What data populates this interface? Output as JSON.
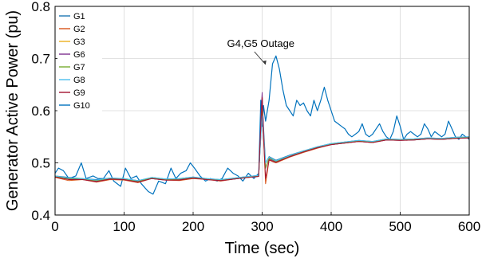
{
  "chart_data": {
    "type": "line",
    "xlabel": "Time (sec)",
    "ylabel": "Generator Active Power (pu)",
    "xlim": [
      0,
      600
    ],
    "ylim": [
      0.4,
      0.8
    ],
    "xticks": [
      0,
      100,
      200,
      300,
      400,
      500,
      600
    ],
    "xtick_labels": [
      "0",
      "100",
      "200",
      "300",
      "400",
      "500",
      "600"
    ],
    "yticks": [
      0.4,
      0.5,
      0.6,
      0.7,
      0.8
    ],
    "ytick_labels": [
      "0.4",
      "0.5",
      "0.6",
      "0.7",
      "0.8"
    ],
    "grid": true,
    "legend_position": "top-left",
    "annotation": {
      "text": "G4,G5 Outage",
      "x": 298,
      "y": 0.71
    },
    "series": [
      {
        "name": "G1",
        "color": "#1f77b4",
        "x": [
          0,
          20,
          40,
          60,
          80,
          100,
          120,
          140,
          160,
          180,
          200,
          220,
          240,
          260,
          280,
          295,
          298,
          300,
          302,
          305,
          310,
          320,
          340,
          360,
          380,
          400,
          420,
          440,
          460,
          480,
          500,
          520,
          540,
          560,
          580,
          600
        ],
        "y": [
          0.475,
          0.472,
          0.47,
          0.468,
          0.471,
          0.47,
          0.466,
          0.472,
          0.469,
          0.47,
          0.473,
          0.47,
          0.468,
          0.471,
          0.474,
          0.476,
          0.55,
          0.62,
          0.57,
          0.5,
          0.512,
          0.505,
          0.515,
          0.523,
          0.531,
          0.537,
          0.54,
          0.543,
          0.541,
          0.546,
          0.545,
          0.546,
          0.548,
          0.547,
          0.549,
          0.55
        ]
      },
      {
        "name": "G2",
        "color": "#d95319",
        "x": [
          0,
          20,
          40,
          60,
          80,
          100,
          120,
          140,
          160,
          180,
          200,
          220,
          240,
          260,
          280,
          295,
          298,
          300,
          302,
          305,
          310,
          320,
          340,
          360,
          380,
          400,
          420,
          440,
          460,
          480,
          500,
          520,
          540,
          560,
          580,
          600
        ],
        "y": [
          0.472,
          0.466,
          0.468,
          0.463,
          0.468,
          0.467,
          0.462,
          0.47,
          0.467,
          0.466,
          0.47,
          0.468,
          0.465,
          0.469,
          0.472,
          0.474,
          0.56,
          0.63,
          0.55,
          0.46,
          0.505,
          0.5,
          0.511,
          0.52,
          0.528,
          0.535,
          0.538,
          0.541,
          0.539,
          0.544,
          0.543,
          0.544,
          0.546,
          0.545,
          0.547,
          0.548
        ]
      },
      {
        "name": "G3",
        "color": "#edb120",
        "x": [
          0,
          20,
          40,
          60,
          80,
          100,
          120,
          140,
          160,
          180,
          200,
          220,
          240,
          260,
          280,
          295,
          298,
          300,
          302,
          305,
          310,
          320,
          340,
          360,
          380,
          400,
          420,
          440,
          460,
          480,
          500,
          520,
          540,
          560,
          580,
          600
        ],
        "y": [
          0.474,
          0.47,
          0.469,
          0.466,
          0.47,
          0.469,
          0.465,
          0.471,
          0.468,
          0.469,
          0.472,
          0.469,
          0.467,
          0.47,
          0.473,
          0.475,
          0.57,
          0.61,
          0.56,
          0.49,
          0.51,
          0.503,
          0.513,
          0.522,
          0.53,
          0.536,
          0.539,
          0.542,
          0.54,
          0.545,
          0.544,
          0.545,
          0.547,
          0.546,
          0.548,
          0.549
        ]
      },
      {
        "name": "G6",
        "color": "#7e2f8e",
        "x": [
          0,
          20,
          40,
          60,
          80,
          100,
          120,
          140,
          160,
          180,
          200,
          220,
          240,
          260,
          280,
          295,
          298,
          300,
          302,
          305,
          310,
          320,
          340,
          360,
          380,
          400,
          420,
          440,
          460,
          480,
          500,
          520,
          540,
          560,
          580,
          600
        ],
        "y": [
          0.473,
          0.469,
          0.468,
          0.465,
          0.469,
          0.468,
          0.464,
          0.47,
          0.467,
          0.468,
          0.471,
          0.468,
          0.466,
          0.469,
          0.472,
          0.474,
          0.58,
          0.635,
          0.56,
          0.49,
          0.508,
          0.502,
          0.512,
          0.521,
          0.529,
          0.535,
          0.538,
          0.541,
          0.539,
          0.544,
          0.543,
          0.544,
          0.546,
          0.545,
          0.547,
          0.548
        ]
      },
      {
        "name": "G7",
        "color": "#77ac30",
        "x": [
          0,
          20,
          40,
          60,
          80,
          100,
          120,
          140,
          160,
          180,
          200,
          220,
          240,
          260,
          280,
          295,
          298,
          300,
          302,
          305,
          310,
          320,
          340,
          360,
          380,
          400,
          420,
          440,
          460,
          480,
          500,
          520,
          540,
          560,
          580,
          600
        ],
        "y": [
          0.474,
          0.47,
          0.469,
          0.466,
          0.47,
          0.469,
          0.465,
          0.471,
          0.468,
          0.469,
          0.472,
          0.469,
          0.467,
          0.47,
          0.473,
          0.475,
          0.56,
          0.6,
          0.55,
          0.49,
          0.509,
          0.503,
          0.513,
          0.522,
          0.53,
          0.536,
          0.539,
          0.542,
          0.54,
          0.545,
          0.544,
          0.545,
          0.547,
          0.546,
          0.548,
          0.549
        ]
      },
      {
        "name": "G8",
        "color": "#4dbeee",
        "x": [
          0,
          20,
          40,
          60,
          80,
          100,
          120,
          140,
          160,
          180,
          200,
          220,
          240,
          260,
          280,
          295,
          298,
          300,
          302,
          305,
          310,
          320,
          340,
          360,
          380,
          400,
          420,
          440,
          460,
          480,
          500,
          520,
          540,
          560,
          580,
          600
        ],
        "y": [
          0.475,
          0.471,
          0.47,
          0.467,
          0.471,
          0.47,
          0.466,
          0.472,
          0.469,
          0.47,
          0.473,
          0.47,
          0.468,
          0.471,
          0.474,
          0.476,
          0.55,
          0.59,
          0.55,
          0.5,
          0.511,
          0.504,
          0.514,
          0.523,
          0.531,
          0.537,
          0.54,
          0.543,
          0.541,
          0.546,
          0.545,
          0.546,
          0.548,
          0.547,
          0.549,
          0.55
        ]
      },
      {
        "name": "G9",
        "color": "#a2142f",
        "x": [
          0,
          20,
          40,
          60,
          80,
          100,
          120,
          140,
          160,
          180,
          200,
          220,
          240,
          260,
          280,
          295,
          298,
          300,
          302,
          305,
          310,
          320,
          340,
          360,
          380,
          400,
          420,
          440,
          460,
          480,
          500,
          520,
          540,
          560,
          580,
          600
        ],
        "y": [
          0.473,
          0.468,
          0.468,
          0.464,
          0.469,
          0.468,
          0.463,
          0.47,
          0.467,
          0.467,
          0.471,
          0.468,
          0.466,
          0.469,
          0.472,
          0.474,
          0.57,
          0.625,
          0.55,
          0.47,
          0.506,
          0.501,
          0.512,
          0.521,
          0.529,
          0.535,
          0.538,
          0.541,
          0.539,
          0.544,
          0.543,
          0.544,
          0.546,
          0.545,
          0.547,
          0.548
        ]
      },
      {
        "name": "G10",
        "color": "#0072bd",
        "x": [
          0,
          5,
          12,
          20,
          30,
          38,
          45,
          55,
          62,
          70,
          78,
          85,
          95,
          102,
          110,
          118,
          125,
          135,
          142,
          150,
          160,
          168,
          175,
          182,
          190,
          196,
          202,
          210,
          218,
          225,
          235,
          242,
          250,
          258,
          265,
          272,
          280,
          288,
          295,
          298,
          300,
          302,
          305,
          310,
          315,
          320,
          325,
          330,
          335,
          340,
          345,
          350,
          355,
          360,
          365,
          370,
          375,
          380,
          385,
          390,
          395,
          400,
          405,
          410,
          415,
          420,
          425,
          430,
          435,
          440,
          445,
          450,
          455,
          460,
          465,
          470,
          475,
          480,
          485,
          490,
          495,
          500,
          505,
          510,
          515,
          520,
          525,
          530,
          535,
          540,
          545,
          550,
          555,
          560,
          565,
          570,
          575,
          580,
          585,
          590,
          595,
          600
        ],
        "y": [
          0.48,
          0.49,
          0.485,
          0.47,
          0.475,
          0.5,
          0.47,
          0.475,
          0.47,
          0.47,
          0.485,
          0.465,
          0.455,
          0.49,
          0.47,
          0.475,
          0.46,
          0.445,
          0.44,
          0.465,
          0.46,
          0.49,
          0.47,
          0.48,
          0.485,
          0.5,
          0.49,
          0.475,
          0.465,
          0.47,
          0.465,
          0.47,
          0.49,
          0.48,
          0.475,
          0.465,
          0.48,
          0.47,
          0.48,
          0.62,
          0.57,
          0.61,
          0.58,
          0.62,
          0.69,
          0.705,
          0.68,
          0.64,
          0.61,
          0.6,
          0.59,
          0.62,
          0.61,
          0.615,
          0.6,
          0.59,
          0.62,
          0.6,
          0.62,
          0.645,
          0.62,
          0.6,
          0.58,
          0.575,
          0.57,
          0.565,
          0.555,
          0.55,
          0.555,
          0.56,
          0.575,
          0.555,
          0.55,
          0.555,
          0.565,
          0.575,
          0.56,
          0.55,
          0.545,
          0.56,
          0.59,
          0.57,
          0.545,
          0.555,
          0.56,
          0.555,
          0.55,
          0.555,
          0.575,
          0.565,
          0.55,
          0.56,
          0.555,
          0.55,
          0.555,
          0.58,
          0.565,
          0.55,
          0.545,
          0.555,
          0.55,
          0.545
        ]
      }
    ]
  }
}
